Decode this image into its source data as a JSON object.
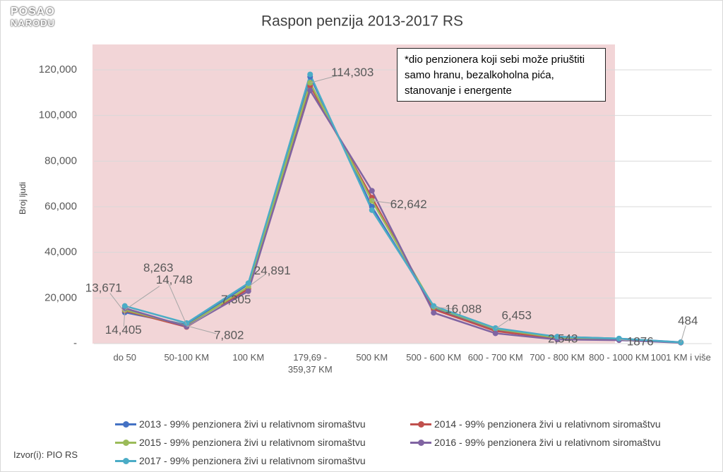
{
  "logo": [
    "POSAO",
    "NARODU"
  ],
  "source": "Izvor(i): PIO RS",
  "chart_data": {
    "type": "line",
    "title": "Raspon penzija 2013-2017 RS",
    "y_label": "Broj ljudi",
    "annotation": "*dio penzionera koji sebi može priuštiti samo hranu, bezalkoholna pića, stanovanje i energente",
    "categories": [
      "do 50",
      "50-100 KM",
      "100 KM",
      "179,69 - 359,37 KM",
      "500 KM",
      "500 - 600 KM",
      "600 - 700 KM",
      "700 - 800 KM",
      "800 - 1000 KM",
      "1001 KM i više"
    ],
    "ylim": [
      0,
      120000
    ],
    "yticks": [
      {
        "value": 0,
        "label": "-"
      },
      {
        "value": 20000,
        "label": "20,000"
      },
      {
        "value": 40000,
        "label": "40,000"
      },
      {
        "value": 60000,
        "label": "60,000"
      },
      {
        "value": 80000,
        "label": "80,000"
      },
      {
        "value": 100000,
        "label": "100,000"
      },
      {
        "value": 120000,
        "label": "120,000"
      }
    ],
    "grid": true,
    "legend": "bottom",
    "series": [
      {
        "name": "2013 - 99% penzionera živi u relativnom siromaštvu",
        "color": "#4472c4",
        "values": [
          13671,
          8263,
          26000,
          117000,
          60000,
          15500,
          6000,
          3000,
          2200,
          600
        ],
        "value_labels": [
          "13,671",
          "8,263",
          null,
          null,
          null,
          null,
          null,
          null,
          null,
          null
        ]
      },
      {
        "name": "2014 - 99% penzionera živi u relativnom siromaštvu",
        "color": "#c0504d",
        "values": [
          14405,
          7305,
          24000,
          113000,
          64000,
          15000,
          5500,
          2200,
          1800,
          500
        ],
        "value_labels": [
          "14,405",
          "7,305",
          null,
          null,
          null,
          null,
          null,
          null,
          null,
          null
        ]
      },
      {
        "name": "2015 - 99% penzionera živi u relativnom siromaštvu",
        "color": "#9bbb59",
        "values": [
          14748,
          7802,
          24891,
          114303,
          62642,
          16088,
          6453,
          2543,
          1876,
          484
        ],
        "value_labels": [
          "14,748",
          "7,802",
          "24,891",
          "114,303",
          "62,642",
          "16,088",
          "6,453",
          "2,543",
          "1876",
          "484"
        ]
      },
      {
        "name": "2016 - 99% penzionera živi u relativnom siromaštvu",
        "color": "#8064a2",
        "values": [
          15500,
          7500,
          23000,
          111000,
          67000,
          13500,
          4500,
          1800,
          1500,
          400
        ]
      },
      {
        "name": "2017 - 99% penzionera živi u relativnom siromaštvu",
        "color": "#4bacc6",
        "values": [
          16500,
          9000,
          26500,
          118000,
          58500,
          16500,
          6800,
          3000,
          2200,
          550
        ]
      }
    ]
  }
}
